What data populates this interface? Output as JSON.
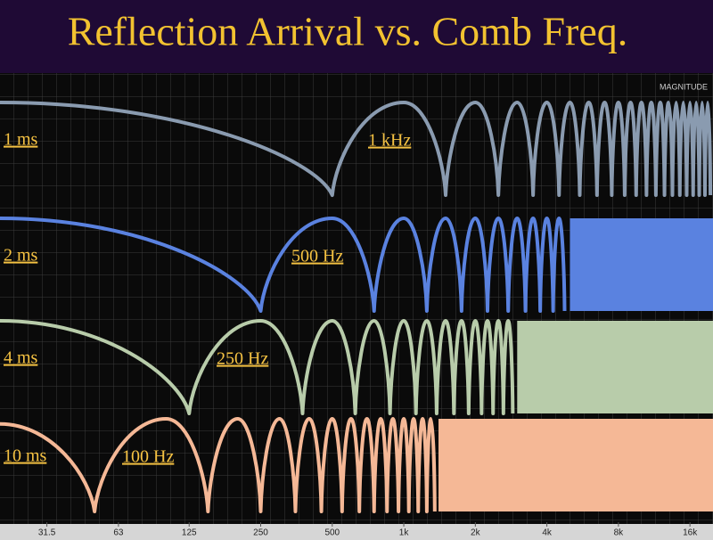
{
  "chart_data": {
    "type": "line",
    "title": "Reflection Arrival vs. Comb Freq.",
    "y_label": "MAGNITUDE",
    "xscale": "log",
    "xlim": [
      20,
      20000
    ],
    "ylim": [
      -30,
      6
    ],
    "grid": true,
    "xticks": [
      31.5,
      63,
      125,
      250,
      500,
      {
        "value": 1000,
        "label": "1k"
      },
      {
        "value": 2000,
        "label": "2k"
      },
      {
        "value": 4000,
        "label": "4k"
      },
      {
        "value": 8000,
        "label": "8k"
      },
      {
        "value": 16000,
        "label": "16k"
      }
    ],
    "series": [
      {
        "name": "1 ms",
        "label": "1 kHz",
        "color": "#8a9bb0",
        "x": [
          20,
          500,
          1000,
          1500,
          2000,
          2500,
          3000,
          3500,
          4000,
          4500,
          5000,
          5500,
          6000,
          6500,
          7000,
          7500,
          8000,
          8500,
          9000,
          9500,
          10000,
          10500,
          11000,
          11500,
          12000,
          12500,
          13000,
          13500,
          14000,
          14500,
          15000,
          15500,
          16000,
          16500,
          17000,
          17500,
          18000,
          18500,
          19000,
          19500
        ],
        "values": [
          6,
          -30,
          6,
          -30,
          6,
          -30,
          6,
          -30,
          6,
          -30,
          6,
          -30,
          6,
          -30,
          6,
          -30,
          6,
          -30,
          6,
          -30,
          6,
          -30,
          6,
          -30,
          6,
          -30,
          6,
          -30,
          6,
          -30,
          6,
          -30,
          6,
          -30,
          6,
          -30,
          6,
          -30,
          6,
          -30
        ]
      },
      {
        "name": "2 ms",
        "label": "500 Hz",
        "color": "#5a82e0",
        "fill_from": 5000,
        "x": [
          20,
          250,
          500,
          750,
          1000,
          1250,
          1500,
          1750,
          2000,
          2250,
          2500,
          2750,
          3000,
          3250,
          3500,
          3750,
          4000,
          4250,
          4500,
          4750
        ],
        "values": [
          6,
          -30,
          6,
          -30,
          6,
          -30,
          6,
          -30,
          6,
          -30,
          6,
          -30,
          6,
          -30,
          6,
          -30,
          6,
          -30,
          6,
          -30
        ]
      },
      {
        "name": "4 ms",
        "label": "250 Hz",
        "color": "#b8ccaa",
        "fill_from": 3000,
        "x": [
          20,
          125,
          250,
          375,
          500,
          625,
          750,
          875,
          1000,
          1125,
          1250,
          1375,
          1500,
          1625,
          1750,
          1875,
          2000,
          2125,
          2250,
          2375,
          2500,
          2625,
          2750,
          2875
        ],
        "values": [
          6,
          -30,
          6,
          -30,
          6,
          -30,
          6,
          -30,
          6,
          -30,
          6,
          -30,
          6,
          -30,
          6,
          -30,
          6,
          -30,
          6,
          -30,
          6,
          -30,
          6,
          -30
        ]
      },
      {
        "name": "10 ms",
        "label": "100 Hz",
        "color": "#f5b896",
        "fill_from": 1400,
        "x": [
          20,
          50,
          100,
          150,
          200,
          250,
          300,
          350,
          400,
          450,
          500,
          550,
          600,
          650,
          700,
          750,
          800,
          850,
          900,
          950,
          1000,
          1050,
          1100,
          1150,
          1200,
          1250,
          1300,
          1350
        ],
        "values": [
          4,
          -30,
          6,
          -30,
          6,
          -30,
          6,
          -30,
          6,
          -30,
          6,
          -30,
          6,
          -30,
          6,
          -30,
          6,
          -30,
          6,
          -30,
          6,
          -30,
          6,
          -30,
          6,
          -30,
          6,
          -30
        ]
      }
    ]
  }
}
